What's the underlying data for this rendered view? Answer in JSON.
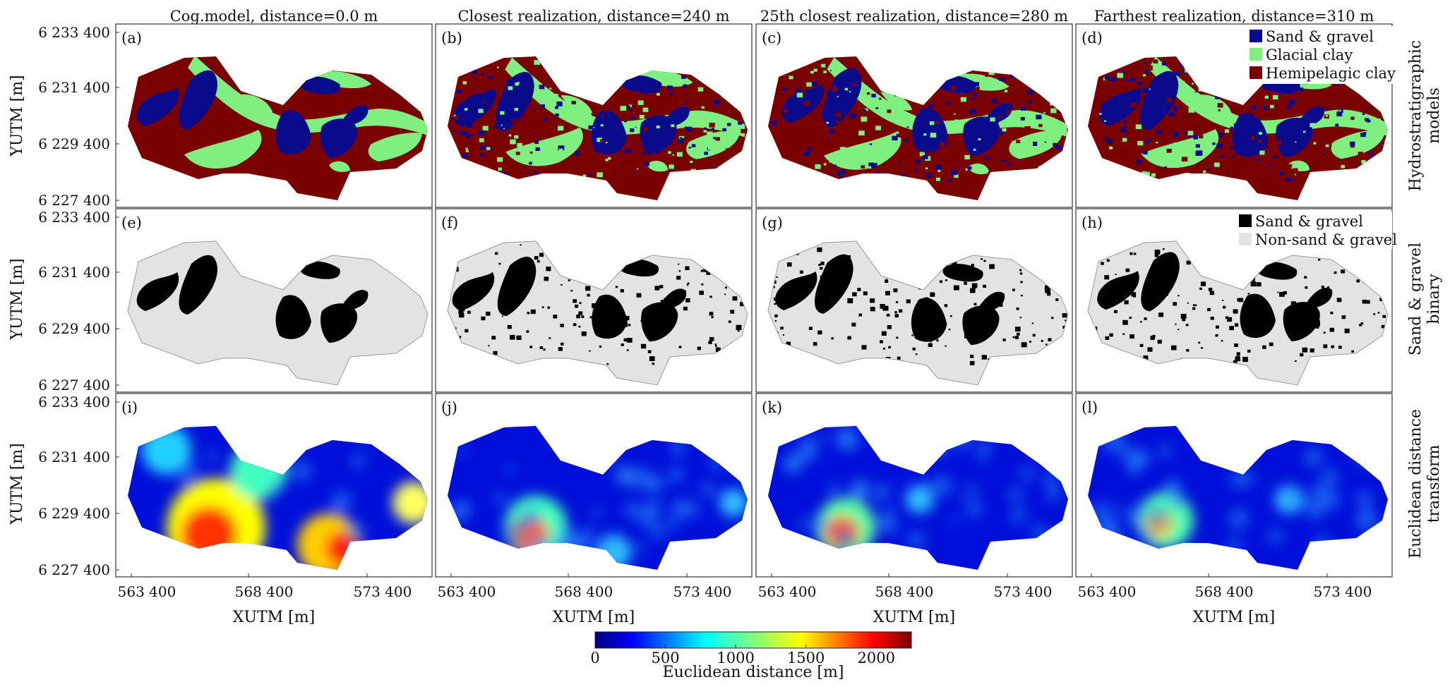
{
  "columns": [
    "Cog.model, distance=0.0 m",
    "Closest realization, distance=240 m",
    "25th closest realization, distance=280 m",
    "Farthest realization, distance=310 m"
  ],
  "rows": [
    {
      "label_lines": [
        "Hydrostratigraphic",
        "models"
      ]
    },
    {
      "label_lines": [
        "Sand & gravel",
        "binary"
      ]
    },
    {
      "label_lines": [
        "Euclidean distance",
        "transform"
      ]
    }
  ],
  "panel_labels": [
    "(a)",
    "(b)",
    "(c)",
    "(d)",
    "(e)",
    "(f)",
    "(g)",
    "(h)",
    "(i)",
    "(j)",
    "(k)",
    "(l)"
  ],
  "y_axis": {
    "label": "YUTM [m]",
    "ticks": [
      "6 233 400",
      "6 231 400",
      "6 229 400",
      "6 227 400"
    ]
  },
  "x_axis": {
    "label": "XUTM [m]",
    "ticks": [
      "563 400",
      "568 400",
      "573 400"
    ]
  },
  "legend_hydro": [
    {
      "label": "Sand & gravel",
      "color": "#0a0a8c"
    },
    {
      "label": "Glacial clay",
      "color": "#7ff07f"
    },
    {
      "label": "Hemipelagic clay",
      "color": "#7a0000"
    }
  ],
  "legend_binary": [
    {
      "label": "Sand & gravel",
      "color": "#000000"
    },
    {
      "label": "Non-sand & gravel",
      "color": "#e3e3e3"
    }
  ],
  "colorbar": {
    "label": "Euclidean distance [m]",
    "ticks": [
      "0",
      "500",
      "1000",
      "1500",
      "2000"
    ],
    "tick_values": [
      0,
      500,
      1000,
      1500,
      2000
    ],
    "range": [
      0,
      2250
    ],
    "colormap": "jet"
  },
  "colors": {
    "sand": "#0a0a8c",
    "glacial": "#7ff07f",
    "hemi": "#7a0000",
    "binary_sand": "#000000",
    "binary_bg": "#e3e3e3"
  }
}
